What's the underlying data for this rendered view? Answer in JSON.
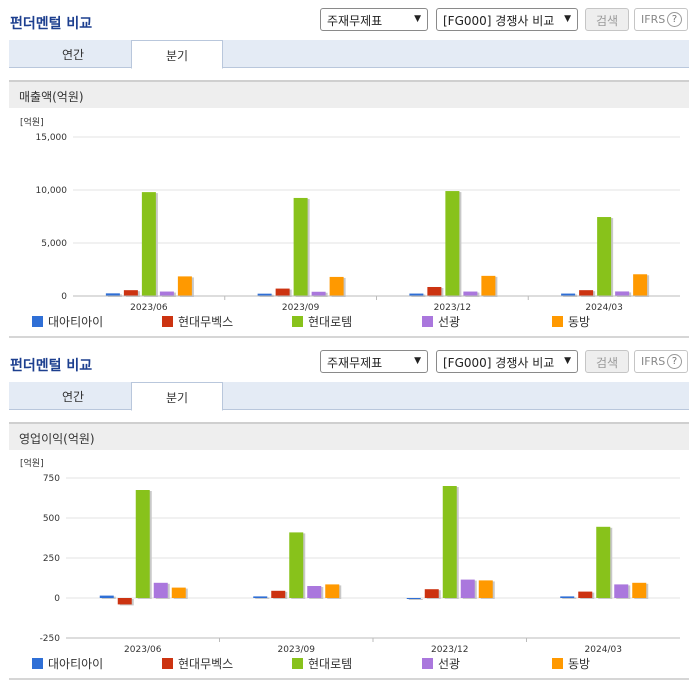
{
  "header": {
    "title": "펀더멘털 비교",
    "select_statement": "주재무제표",
    "select_group": "[FG000] 경쟁사 비교",
    "search_label": "검색",
    "ifrs_label": "IFRS",
    "help_glyph": "?"
  },
  "tabs": [
    {
      "label": "연간",
      "active": false
    },
    {
      "label": "분기",
      "active": true
    }
  ],
  "colors": {
    "대아티아이": "#2f6fd6",
    "현대무벡스": "#cc3311",
    "현대로템": "#88c21b",
    "선광": "#aa77dd",
    "동방": "#ff9900"
  },
  "chart_data": [
    {
      "type": "bar",
      "title": "매출액(억원)",
      "unit": "[억원]",
      "categories": [
        "2023/06",
        "2023/09",
        "2023/12",
        "2024/03"
      ],
      "ylim": [
        0,
        15000
      ],
      "yticks": [
        "15,000",
        "10,000",
        "5,000",
        "0"
      ],
      "ytick_values": [
        15000,
        10000,
        5000,
        0
      ],
      "grid": true,
      "legend_position": "bottom",
      "series": [
        {
          "name": "대아티아이",
          "values": [
            250,
            220,
            230,
            230
          ]
        },
        {
          "name": "현대무벡스",
          "values": [
            550,
            700,
            850,
            550
          ]
        },
        {
          "name": "현대로템",
          "values": [
            9800,
            9250,
            9900,
            7450
          ]
        },
        {
          "name": "선광",
          "values": [
            420,
            400,
            420,
            430
          ]
        },
        {
          "name": "동방",
          "values": [
            1850,
            1800,
            1900,
            2050
          ]
        }
      ]
    },
    {
      "type": "bar",
      "title": "영업이익(억원)",
      "unit": "[억원]",
      "categories": [
        "2023/06",
        "2023/09",
        "2023/12",
        "2024/03"
      ],
      "ylim": [
        -250,
        750
      ],
      "yticks": [
        "750",
        "500",
        "250",
        "0",
        "-250"
      ],
      "ytick_values": [
        750,
        500,
        250,
        0,
        -250
      ],
      "grid": true,
      "legend_position": "bottom",
      "series": [
        {
          "name": "대아티아이",
          "values": [
            15,
            10,
            0,
            10
          ]
        },
        {
          "name": "현대무벡스",
          "values": [
            -40,
            45,
            55,
            40
          ]
        },
        {
          "name": "현대로템",
          "values": [
            675,
            410,
            700,
            445
          ]
        },
        {
          "name": "선광",
          "values": [
            95,
            75,
            115,
            85
          ]
        },
        {
          "name": "동방",
          "values": [
            65,
            85,
            110,
            95
          ]
        }
      ]
    }
  ]
}
